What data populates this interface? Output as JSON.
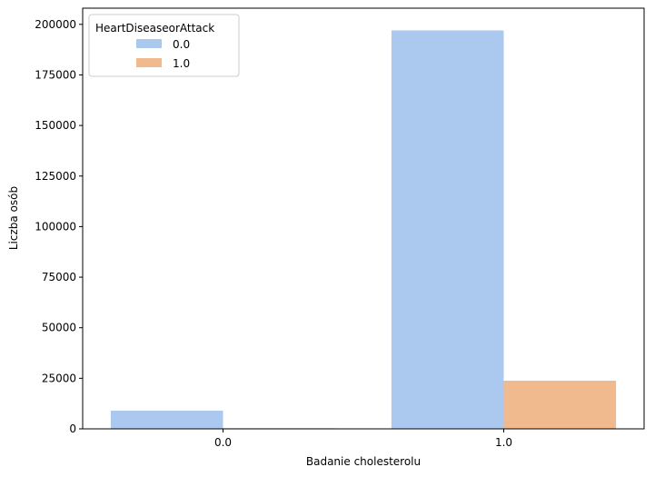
{
  "chart_data": {
    "type": "bar",
    "xlabel": "Badanie cholesterolu",
    "ylabel": "Liczba osób",
    "categories": [
      "0.0",
      "1.0"
    ],
    "series": [
      {
        "name": "0.0",
        "color": "#abc9ee",
        "values": [
          9000,
          197000
        ]
      },
      {
        "name": "1.0",
        "color": "#f0b98e",
        "values": [
          300,
          23800
        ]
      }
    ],
    "ylim": [
      0,
      208000
    ],
    "yticks": [
      0,
      25000,
      50000,
      75000,
      100000,
      125000,
      150000,
      175000,
      200000
    ],
    "legend": {
      "title": "HeartDiseaseorAttack",
      "placement": "top-left"
    },
    "grid": false
  }
}
